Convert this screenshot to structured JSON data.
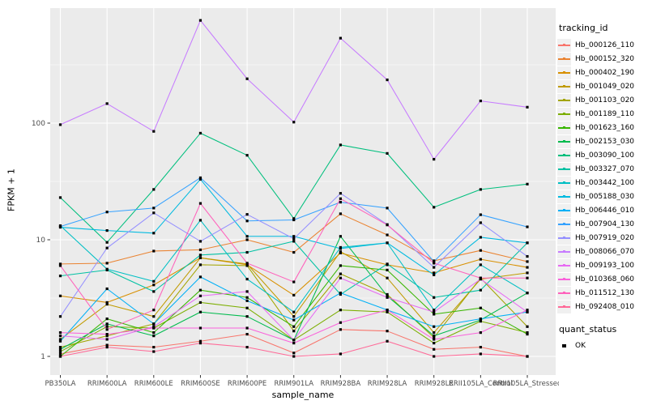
{
  "chart_data": {
    "type": "line",
    "title": "",
    "xlabel": "sample_name",
    "ylabel": "FPKM + 1",
    "y_scale": "log10",
    "ylim": [
      0.69,
      970
    ],
    "y_ticks": [
      1,
      10,
      100
    ],
    "y_tick_labels": [
      "1",
      "10",
      "100"
    ],
    "y_minor_ticks": [
      3.162,
      31.62,
      316.2
    ],
    "grid": true,
    "panel_bg": "#EBEBEB",
    "grid_color": "#FFFFFF",
    "point_color": "#000000",
    "tick_label_color": "#4D4D4D",
    "categories": [
      "PB350LA",
      "RRIM600LA",
      "RRIM600LE",
      "RRIM600SE",
      "RRIM600PE",
      "RRIM901LA",
      "RRIM928BA",
      "RRIM928LA",
      "RRIM928LE",
      "RRII105LA_Control",
      "RRII105LA_Stressed"
    ],
    "series": [
      {
        "name": "Hb_000126_110",
        "color": "#F8766D",
        "values": [
          1.05,
          1.25,
          1.2,
          1.35,
          1.55,
          1.07,
          1.7,
          1.65,
          1.15,
          1.2,
          1.0
        ]
      },
      {
        "name": "Hb_000152_320",
        "color": "#EA8331",
        "values": [
          6.2,
          6.3,
          8.0,
          8.2,
          10.0,
          7.8,
          16.7,
          11.0,
          6.6,
          8.1,
          6.5
        ]
      },
      {
        "name": "Hb_000402_190",
        "color": "#D89000",
        "values": [
          3.3,
          2.9,
          4.1,
          7.0,
          6.1,
          3.35,
          7.7,
          6.1,
          5.2,
          6.8,
          5.8
        ]
      },
      {
        "name": "Hb_001049_020",
        "color": "#C09B00",
        "values": [
          1.4,
          2.8,
          2.2,
          7.0,
          6.2,
          2.2,
          7.9,
          4.7,
          1.6,
          4.6,
          5.2
        ]
      },
      {
        "name": "Hb_001103_020",
        "color": "#A3A500",
        "values": [
          1.2,
          1.5,
          1.9,
          6.1,
          6.0,
          1.65,
          5.1,
          3.4,
          1.45,
          4.7,
          1.8
        ]
      },
      {
        "name": "Hb_001189_110",
        "color": "#7CAE00",
        "values": [
          1.1,
          1.8,
          1.75,
          2.9,
          2.6,
          1.38,
          2.5,
          2.4,
          1.3,
          2.0,
          1.6
        ]
      },
      {
        "name": "Hb_001623_160",
        "color": "#39B600",
        "values": [
          1.0,
          2.1,
          1.6,
          3.7,
          3.2,
          1.8,
          6.0,
          5.5,
          2.3,
          2.6,
          1.55
        ]
      },
      {
        "name": "Hb_002153_030",
        "color": "#00BB4E",
        "values": [
          1.15,
          1.9,
          1.5,
          2.4,
          2.2,
          1.38,
          10.7,
          3.3,
          1.5,
          2.05,
          3.5
        ]
      },
      {
        "name": "Hb_003090_100",
        "color": "#00BF7D",
        "values": [
          23,
          9.5,
          27,
          82,
          53,
          15.2,
          65,
          55,
          19,
          27,
          30
        ]
      },
      {
        "name": "Hb_003327_070",
        "color": "#00C1A3",
        "values": [
          4.9,
          5.5,
          3.6,
          7.4,
          7.8,
          9.7,
          3.4,
          6.2,
          3.2,
          3.7,
          9.4
        ]
      },
      {
        "name": "Hb_003442_100",
        "color": "#00BFC4",
        "values": [
          13.2,
          5.6,
          4.4,
          14.7,
          4.6,
          2.4,
          8.6,
          9.4,
          2.5,
          6.1,
          3.5
        ]
      },
      {
        "name": "Hb_005188_030",
        "color": "#00BAE0",
        "values": [
          12.8,
          12.0,
          11.4,
          33,
          10.7,
          10.7,
          8.4,
          9.4,
          5.0,
          10.5,
          9.4
        ]
      },
      {
        "name": "Hb_006446_010",
        "color": "#00B0F6",
        "values": [
          1.35,
          3.8,
          1.9,
          4.8,
          3.0,
          2.05,
          3.5,
          2.5,
          1.8,
          2.1,
          2.4
        ]
      },
      {
        "name": "Hb_007904_130",
        "color": "#35A2FF",
        "values": [
          13.0,
          17.3,
          18.7,
          34,
          14.5,
          14.8,
          21,
          18.7,
          6.5,
          16.4,
          12.9
        ]
      },
      {
        "name": "Hb_007919_020",
        "color": "#9590FF",
        "values": [
          2.2,
          8.5,
          17.0,
          9.7,
          16.5,
          10.2,
          25,
          13.5,
          5.8,
          14.0,
          7.2
        ]
      },
      {
        "name": "Hb_008066_070",
        "color": "#C77CFF",
        "values": [
          97,
          147,
          85,
          760,
          240,
          102,
          535,
          235,
          49,
          155,
          137
        ]
      },
      {
        "name": "Hb_009193_100",
        "color": "#E76BF3",
        "values": [
          1.5,
          1.4,
          1.8,
          3.3,
          3.6,
          1.38,
          4.7,
          3.2,
          2.4,
          4.6,
          2.4
        ]
      },
      {
        "name": "Hb_010368_060",
        "color": "#FA62DB",
        "values": [
          1.6,
          1.55,
          1.75,
          1.75,
          1.75,
          1.3,
          1.95,
          2.5,
          1.4,
          1.6,
          2.5
        ]
      },
      {
        "name": "Hb_011512_130",
        "color": "#FF62BC",
        "values": [
          6.0,
          1.7,
          2.5,
          20.5,
          6.3,
          4.35,
          22.5,
          13.4,
          6.3,
          4.7,
          4.7
        ]
      },
      {
        "name": "Hb_092408_010",
        "color": "#FF6A98",
        "values": [
          1.0,
          1.2,
          1.1,
          1.3,
          1.2,
          1.0,
          1.05,
          1.35,
          1.0,
          1.05,
          1.0
        ]
      }
    ]
  },
  "legend": {
    "tracking_title": "tracking_id",
    "quant_title": "quant_status",
    "quant_items": [
      {
        "label": "OK",
        "marker": "black-square"
      }
    ]
  }
}
